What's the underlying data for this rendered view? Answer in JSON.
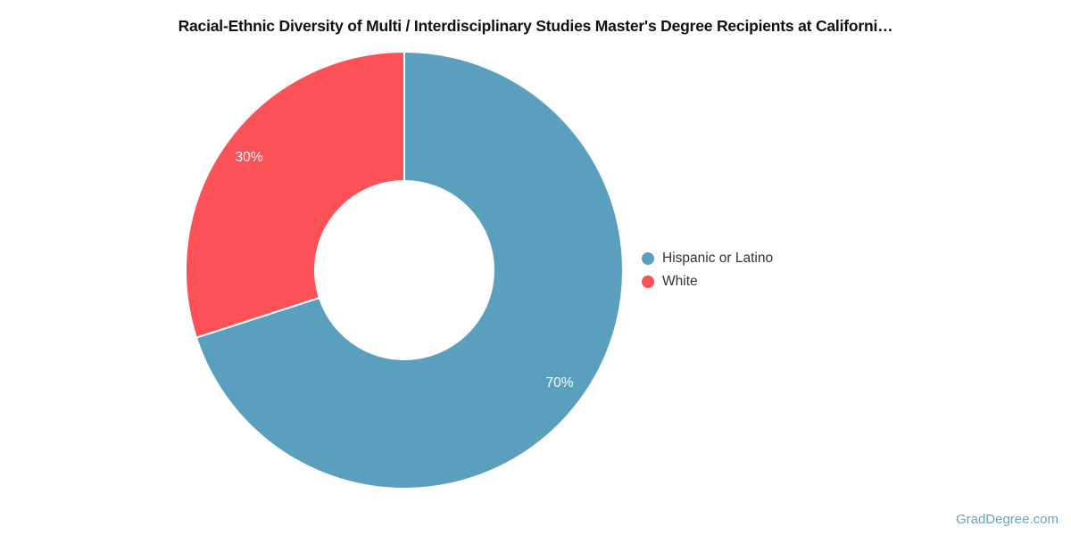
{
  "chart_data": {
    "type": "pie",
    "subtype": "donut",
    "title": "Racial-Ethnic Diversity of Multi / Interdisciplinary Studies Master's Degree Recipients at Californi…",
    "labels": [
      "Hispanic or Latino",
      "White"
    ],
    "values": [
      70,
      30
    ],
    "value_labels": [
      "70%",
      "30%"
    ],
    "colors": [
      "#5B9FBE",
      "#FC5157"
    ],
    "start_angle_deg": 0,
    "direction": "clockwise",
    "inner_radius_ratio": 0.41,
    "legend_position": "right",
    "label_color": "#ffffff"
  },
  "watermark": "GradDegree.com"
}
